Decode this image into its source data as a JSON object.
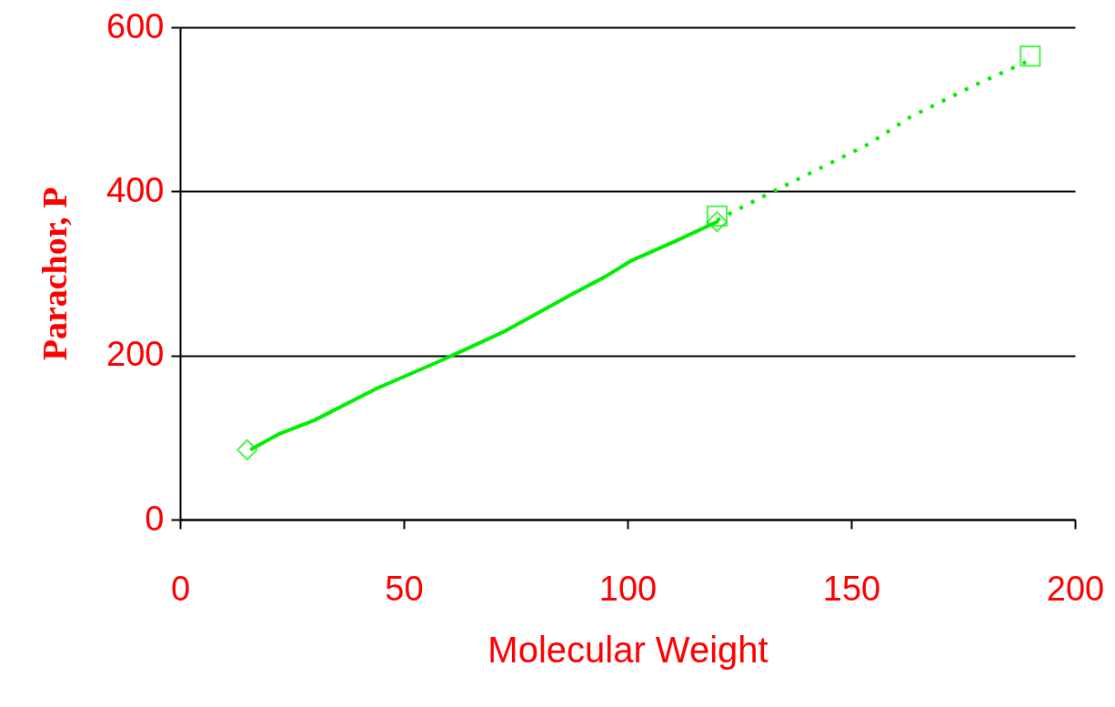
{
  "chart_data": {
    "type": "line",
    "xlabel": "Molecular Weight",
    "ylabel": "Parachor, P",
    "xlim": [
      0,
      200
    ],
    "xticks": [
      0,
      50,
      100,
      150,
      200
    ],
    "ylim": [
      0,
      600
    ],
    "yticks": [
      0,
      200,
      400,
      600
    ],
    "grid": "y",
    "series": [
      {
        "type": "line",
        "color": "#00ee00",
        "line_style": "solid",
        "x": [
          16,
          22,
          30,
          44,
          58,
          72,
          88,
          95,
          101,
          111,
          120
        ],
        "values": [
          86,
          104,
          121,
          160,
          193,
          228,
          276,
          296,
          316,
          340,
          363
        ]
      },
      {
        "type": "scatter",
        "color": "#00ee00",
        "marker": "diamond",
        "x": [
          15,
          120
        ],
        "values": [
          85,
          363
        ]
      },
      {
        "type": "line",
        "color": "#00ee00",
        "line_style": "dotted",
        "x": [
          120,
          130,
          140,
          154,
          163,
          177,
          190
        ],
        "values": [
          365,
          393,
          420,
          458,
          490,
          528,
          560
        ]
      },
      {
        "type": "scatter",
        "color": "#00ee00",
        "marker": "square",
        "x": [
          120,
          190
        ],
        "values": [
          370,
          565
        ]
      }
    ]
  }
}
